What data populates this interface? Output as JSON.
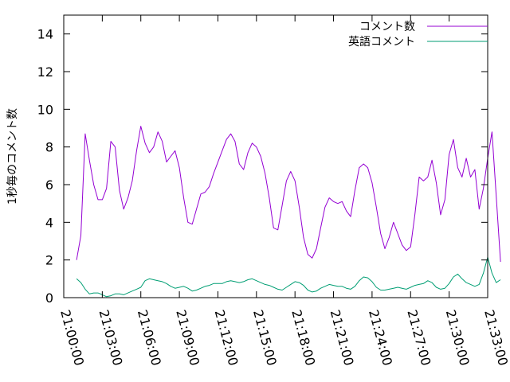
{
  "chart_data": {
    "type": "line",
    "title": "",
    "xlabel": "",
    "ylabel": "1秒毎のコメント数",
    "ylim": [
      0,
      15
    ],
    "xlim": [
      "21:00:00",
      "21:33:00"
    ],
    "grid": false,
    "legend_position": "top-right",
    "x_ticks": [
      "21:00:00",
      "21:03:00",
      "21:06:00",
      "21:09:00",
      "21:12:00",
      "21:15:00",
      "21:18:00",
      "21:21:00",
      "21:24:00",
      "21:27:00",
      "21:30:00",
      "21:33:00"
    ],
    "y_ticks": [
      "0",
      "2",
      "4",
      "6",
      "8",
      "10",
      "12",
      "14"
    ],
    "series": [
      {
        "name": "コメント数",
        "color": "#9400d3",
        "points": [
          [
            "21:01:00",
            2.0
          ],
          [
            "21:01:20",
            3.3
          ],
          [
            "21:01:40",
            8.7
          ],
          [
            "21:02:00",
            7.3
          ],
          [
            "21:02:20",
            6.0
          ],
          [
            "21:02:40",
            5.2
          ],
          [
            "21:03:00",
            5.2
          ],
          [
            "21:03:20",
            5.8
          ],
          [
            "21:03:40",
            8.3
          ],
          [
            "21:04:00",
            8.0
          ],
          [
            "21:04:20",
            5.7
          ],
          [
            "21:04:40",
            4.7
          ],
          [
            "21:05:00",
            5.3
          ],
          [
            "21:05:20",
            6.2
          ],
          [
            "21:05:40",
            7.8
          ],
          [
            "21:06:00",
            9.1
          ],
          [
            "21:06:20",
            8.2
          ],
          [
            "21:06:40",
            7.7
          ],
          [
            "21:07:00",
            8.0
          ],
          [
            "21:07:20",
            8.8
          ],
          [
            "21:07:40",
            8.3
          ],
          [
            "21:08:00",
            7.2
          ],
          [
            "21:08:20",
            7.5
          ],
          [
            "21:08:40",
            7.8
          ],
          [
            "21:09:00",
            6.9
          ],
          [
            "21:09:20",
            5.3
          ],
          [
            "21:09:40",
            4.0
          ],
          [
            "21:10:00",
            3.9
          ],
          [
            "21:10:20",
            4.7
          ],
          [
            "21:10:40",
            5.5
          ],
          [
            "21:11:00",
            5.6
          ],
          [
            "21:11:20",
            5.9
          ],
          [
            "21:11:40",
            6.6
          ],
          [
            "21:12:00",
            7.2
          ],
          [
            "21:12:20",
            7.8
          ],
          [
            "21:12:40",
            8.4
          ],
          [
            "21:13:00",
            8.7
          ],
          [
            "21:13:20",
            8.3
          ],
          [
            "21:13:40",
            7.1
          ],
          [
            "21:14:00",
            6.8
          ],
          [
            "21:14:20",
            7.7
          ],
          [
            "21:14:40",
            8.2
          ],
          [
            "21:15:00",
            8.0
          ],
          [
            "21:15:20",
            7.5
          ],
          [
            "21:15:40",
            6.6
          ],
          [
            "21:16:00",
            5.3
          ],
          [
            "21:16:20",
            3.7
          ],
          [
            "21:16:40",
            3.6
          ],
          [
            "21:17:00",
            4.9
          ],
          [
            "21:17:20",
            6.2
          ],
          [
            "21:17:40",
            6.7
          ],
          [
            "21:18:00",
            6.2
          ],
          [
            "21:18:20",
            4.8
          ],
          [
            "21:18:40",
            3.2
          ],
          [
            "21:19:00",
            2.3
          ],
          [
            "21:19:20",
            2.1
          ],
          [
            "21:19:40",
            2.6
          ],
          [
            "21:20:00",
            3.7
          ],
          [
            "21:20:20",
            4.8
          ],
          [
            "21:20:40",
            5.3
          ],
          [
            "21:21:00",
            5.1
          ],
          [
            "21:21:20",
            5.0
          ],
          [
            "21:21:40",
            5.1
          ],
          [
            "21:22:00",
            4.6
          ],
          [
            "21:22:20",
            4.3
          ],
          [
            "21:22:40",
            5.7
          ],
          [
            "21:23:00",
            6.9
          ],
          [
            "21:23:20",
            7.1
          ],
          [
            "21:23:40",
            6.9
          ],
          [
            "21:24:00",
            6.1
          ],
          [
            "21:24:20",
            4.8
          ],
          [
            "21:24:40",
            3.4
          ],
          [
            "21:25:00",
            2.6
          ],
          [
            "21:25:20",
            3.2
          ],
          [
            "21:25:40",
            4.0
          ],
          [
            "21:26:00",
            3.4
          ],
          [
            "21:26:20",
            2.8
          ],
          [
            "21:26:40",
            2.5
          ],
          [
            "21:27:00",
            2.7
          ],
          [
            "21:27:20",
            4.4
          ],
          [
            "21:27:40",
            6.4
          ],
          [
            "21:28:00",
            6.2
          ],
          [
            "21:28:20",
            6.4
          ],
          [
            "21:28:40",
            7.3
          ],
          [
            "21:29:00",
            6.1
          ],
          [
            "21:29:20",
            4.4
          ],
          [
            "21:29:40",
            5.2
          ],
          [
            "21:30:00",
            7.6
          ],
          [
            "21:30:20",
            8.4
          ],
          [
            "21:30:40",
            6.9
          ],
          [
            "21:31:00",
            6.4
          ],
          [
            "21:31:20",
            7.4
          ],
          [
            "21:31:40",
            6.4
          ],
          [
            "21:32:00",
            6.8
          ],
          [
            "21:32:20",
            4.7
          ],
          [
            "21:32:40",
            5.8
          ],
          [
            "21:33:00",
            7.4
          ],
          [
            "21:33:20",
            8.8
          ],
          [
            "21:33:40",
            5.4
          ],
          [
            "21:34:00",
            1.9
          ]
        ]
      },
      {
        "name": "英語コメント",
        "color": "#009e73",
        "points": [
          [
            "21:01:00",
            1.0
          ],
          [
            "21:01:20",
            0.8
          ],
          [
            "21:01:40",
            0.45
          ],
          [
            "21:02:00",
            0.2
          ],
          [
            "21:02:20",
            0.25
          ],
          [
            "21:02:40",
            0.25
          ],
          [
            "21:03:00",
            0.15
          ],
          [
            "21:03:20",
            0.05
          ],
          [
            "21:03:40",
            0.1
          ],
          [
            "21:04:00",
            0.2
          ],
          [
            "21:04:20",
            0.2
          ],
          [
            "21:04:40",
            0.15
          ],
          [
            "21:05:00",
            0.25
          ],
          [
            "21:05:20",
            0.35
          ],
          [
            "21:05:40",
            0.45
          ],
          [
            "21:06:00",
            0.55
          ],
          [
            "21:06:20",
            0.9
          ],
          [
            "21:06:40",
            1.0
          ],
          [
            "21:07:00",
            0.95
          ],
          [
            "21:07:20",
            0.9
          ],
          [
            "21:07:40",
            0.85
          ],
          [
            "21:08:00",
            0.75
          ],
          [
            "21:08:20",
            0.6
          ],
          [
            "21:08:40",
            0.5
          ],
          [
            "21:09:00",
            0.55
          ],
          [
            "21:09:20",
            0.6
          ],
          [
            "21:09:40",
            0.5
          ],
          [
            "21:10:00",
            0.35
          ],
          [
            "21:10:20",
            0.4
          ],
          [
            "21:10:40",
            0.5
          ],
          [
            "21:11:00",
            0.6
          ],
          [
            "21:11:20",
            0.65
          ],
          [
            "21:11:40",
            0.75
          ],
          [
            "21:12:00",
            0.75
          ],
          [
            "21:12:20",
            0.75
          ],
          [
            "21:12:40",
            0.85
          ],
          [
            "21:13:00",
            0.9
          ],
          [
            "21:13:20",
            0.85
          ],
          [
            "21:13:40",
            0.8
          ],
          [
            "21:14:00",
            0.85
          ],
          [
            "21:14:20",
            0.95
          ],
          [
            "21:14:40",
            1.0
          ],
          [
            "21:15:00",
            0.9
          ],
          [
            "21:15:20",
            0.8
          ],
          [
            "21:15:40",
            0.7
          ],
          [
            "21:16:00",
            0.65
          ],
          [
            "21:16:20",
            0.55
          ],
          [
            "21:16:40",
            0.45
          ],
          [
            "21:17:00",
            0.4
          ],
          [
            "21:17:20",
            0.55
          ],
          [
            "21:17:40",
            0.7
          ],
          [
            "21:18:00",
            0.85
          ],
          [
            "21:18:20",
            0.8
          ],
          [
            "21:18:40",
            0.65
          ],
          [
            "21:19:00",
            0.4
          ],
          [
            "21:19:20",
            0.3
          ],
          [
            "21:19:40",
            0.35
          ],
          [
            "21:20:00",
            0.5
          ],
          [
            "21:20:20",
            0.6
          ],
          [
            "21:20:40",
            0.7
          ],
          [
            "21:21:00",
            0.65
          ],
          [
            "21:21:20",
            0.6
          ],
          [
            "21:21:40",
            0.6
          ],
          [
            "21:22:00",
            0.5
          ],
          [
            "21:22:20",
            0.45
          ],
          [
            "21:22:40",
            0.6
          ],
          [
            "21:23:00",
            0.9
          ],
          [
            "21:23:20",
            1.1
          ],
          [
            "21:23:40",
            1.05
          ],
          [
            "21:24:00",
            0.85
          ],
          [
            "21:24:20",
            0.55
          ],
          [
            "21:24:40",
            0.4
          ],
          [
            "21:25:00",
            0.4
          ],
          [
            "21:25:20",
            0.45
          ],
          [
            "21:25:40",
            0.5
          ],
          [
            "21:26:00",
            0.55
          ],
          [
            "21:26:20",
            0.5
          ],
          [
            "21:26:40",
            0.45
          ],
          [
            "21:27:00",
            0.55
          ],
          [
            "21:27:20",
            0.65
          ],
          [
            "21:27:40",
            0.7
          ],
          [
            "21:28:00",
            0.75
          ],
          [
            "21:28:20",
            0.9
          ],
          [
            "21:28:40",
            0.8
          ],
          [
            "21:29:00",
            0.55
          ],
          [
            "21:29:20",
            0.45
          ],
          [
            "21:29:40",
            0.5
          ],
          [
            "21:30:00",
            0.75
          ],
          [
            "21:30:20",
            1.1
          ],
          [
            "21:30:40",
            1.25
          ],
          [
            "21:31:00",
            1.0
          ],
          [
            "21:31:20",
            0.8
          ],
          [
            "21:31:40",
            0.7
          ],
          [
            "21:32:00",
            0.6
          ],
          [
            "21:32:20",
            0.7
          ],
          [
            "21:32:40",
            1.3
          ],
          [
            "21:33:00",
            2.15
          ],
          [
            "21:33:20",
            1.3
          ],
          [
            "21:33:40",
            0.8
          ],
          [
            "21:34:00",
            0.95
          ]
        ]
      }
    ]
  }
}
